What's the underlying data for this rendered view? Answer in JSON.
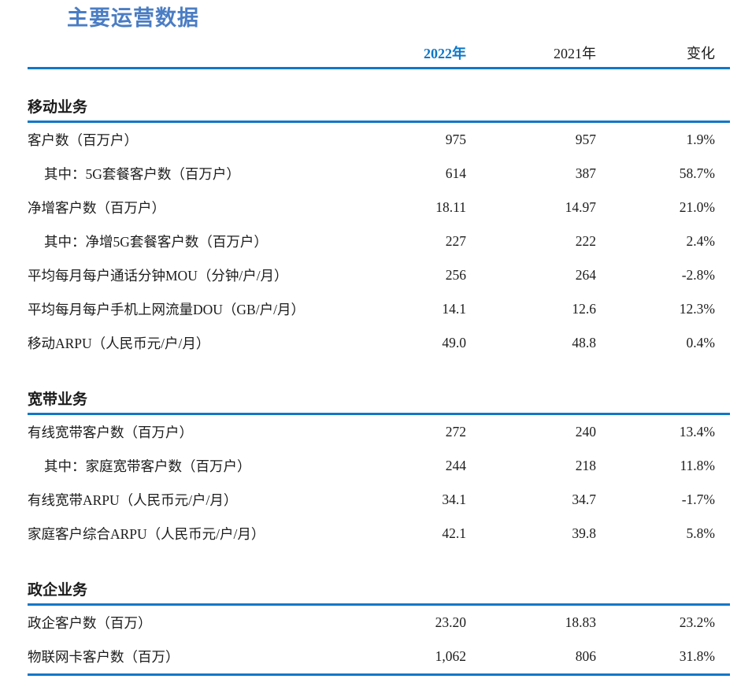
{
  "page": {
    "title": "主要运营数据"
  },
  "colors": {
    "accent_blue": "#1277c8",
    "title_blue": "#4a7dc4",
    "header_2022_blue": "#0d77c8",
    "text_ink": "#1c1c1c"
  },
  "table": {
    "columns": {
      "y2022": "2022年",
      "y2021": "2021年",
      "change": "变化"
    },
    "sections": [
      {
        "title": "移动业务",
        "rows": [
          {
            "label": "客户数（百万户）",
            "indent": false,
            "y2022": "975",
            "y2021": "957",
            "change": "1.9%"
          },
          {
            "label": "其中：5G套餐客户数（百万户）",
            "indent": true,
            "y2022": "614",
            "y2021": "387",
            "change": "58.7%"
          },
          {
            "label": "净增客户数（百万户）",
            "indent": false,
            "y2022": "18.11",
            "y2021": "14.97",
            "change": "21.0%"
          },
          {
            "label": "其中：净增5G套餐客户数（百万户）",
            "indent": true,
            "y2022": "227",
            "y2021": "222",
            "change": "2.4%"
          },
          {
            "label": "平均每月每户通话分钟MOU（分钟/户/月）",
            "indent": false,
            "y2022": "256",
            "y2021": "264",
            "change": "-2.8%"
          },
          {
            "label": "平均每月每户手机上网流量DOU（GB/户/月）",
            "indent": false,
            "y2022": "14.1",
            "y2021": "12.6",
            "change": "12.3%"
          },
          {
            "label": "移动ARPU（人民币元/户/月）",
            "indent": false,
            "y2022": "49.0",
            "y2021": "48.8",
            "change": "0.4%"
          }
        ]
      },
      {
        "title": "宽带业务",
        "rows": [
          {
            "label": "有线宽带客户数（百万户）",
            "indent": false,
            "y2022": "272",
            "y2021": "240",
            "change": "13.4%"
          },
          {
            "label": "其中：家庭宽带客户数（百万户）",
            "indent": true,
            "y2022": "244",
            "y2021": "218",
            "change": "11.8%"
          },
          {
            "label": "有线宽带ARPU（人民币元/户/月）",
            "indent": false,
            "y2022": "34.1",
            "y2021": "34.7",
            "change": "-1.7%"
          },
          {
            "label": "家庭客户综合ARPU（人民币元/户/月）",
            "indent": false,
            "y2022": "42.1",
            "y2021": "39.8",
            "change": "5.8%"
          }
        ]
      },
      {
        "title": "政企业务",
        "rows": [
          {
            "label": "政企客户数（百万）",
            "indent": false,
            "y2022": "23.20",
            "y2021": "18.83",
            "change": "23.2%"
          },
          {
            "label": "物联网卡客户数（百万）",
            "indent": false,
            "y2022": "1,062",
            "y2021": "806",
            "change": "31.8%"
          }
        ]
      }
    ]
  }
}
